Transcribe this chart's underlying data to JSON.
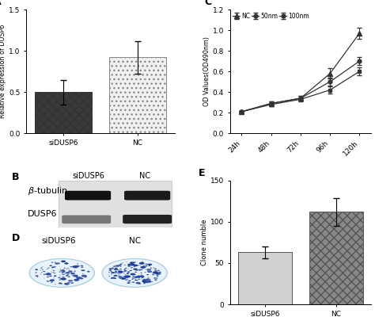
{
  "panel_A": {
    "categories": [
      "siDUSP6",
      "NC"
    ],
    "values": [
      0.5,
      0.92
    ],
    "errors": [
      0.15,
      0.2
    ],
    "colors": [
      "#3a3a3a",
      "#f0f0f0"
    ],
    "edgecolors": [
      "#333333",
      "#888888"
    ],
    "ylabel": "Relative expression of DUSP6",
    "ylim": [
      0,
      1.5
    ],
    "yticks": [
      0.0,
      0.5,
      1.0,
      1.5
    ],
    "hatch_sidusp6": "xxx",
    "hatch_nc": "..."
  },
  "panel_C": {
    "timepoints": [
      "24h",
      "48h",
      "72h",
      "96h",
      "120h"
    ],
    "x": [
      0,
      1,
      2,
      3,
      4
    ],
    "NC": [
      0.21,
      0.29,
      0.34,
      0.58,
      0.97
    ],
    "nm50": [
      0.21,
      0.29,
      0.34,
      0.5,
      0.7
    ],
    "nm100": [
      0.21,
      0.28,
      0.33,
      0.42,
      0.6
    ],
    "NC_err": [
      0.01,
      0.02,
      0.02,
      0.05,
      0.055
    ],
    "nm50_err": [
      0.01,
      0.02,
      0.02,
      0.04,
      0.04
    ],
    "nm100_err": [
      0.01,
      0.02,
      0.02,
      0.035,
      0.04
    ],
    "ylabel": "OD Values(OD490nm)",
    "ylim": [
      0.0,
      1.2
    ],
    "yticks": [
      0.0,
      0.2,
      0.4,
      0.6,
      0.8,
      1.0,
      1.2
    ],
    "legend_labels": [
      "NC",
      "50nm",
      "100nm"
    ],
    "color": "#333333"
  },
  "panel_E": {
    "categories": [
      "siDUSP6",
      "NC"
    ],
    "values": [
      63,
      112
    ],
    "errors": [
      7,
      17
    ],
    "colors": [
      "#d0d0d0",
      "#888888"
    ],
    "edgecolors": [
      "#555555",
      "#555555"
    ],
    "ylabel": "Clone numble",
    "ylim": [
      0,
      150
    ],
    "yticks": [
      0,
      50,
      100,
      150
    ],
    "hatch_sidusp6": "",
    "hatch_nc": "xxx"
  },
  "bg_color": "#ffffff"
}
